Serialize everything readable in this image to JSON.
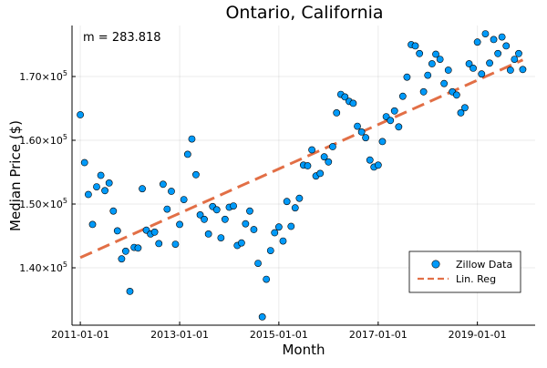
{
  "chart_data": {
    "type": "scatter",
    "title": "Ontario, California",
    "xlabel": "Month",
    "ylabel": "Median Price ($)",
    "annotation": "m = 283.818",
    "x_ticks": [
      "2011-01-01",
      "2013-01-01",
      "2015-01-01",
      "2017-01-01",
      "2019-01-01"
    ],
    "y_ticks": [
      140000,
      150000,
      160000,
      170000
    ],
    "y_tick_labels": [
      {
        "base": "1.40×10",
        "exp": "5"
      },
      {
        "base": "1.50×10",
        "exp": "5"
      },
      {
        "base": "1.60×10",
        "exp": "5"
      },
      {
        "base": "1.70×10",
        "exp": "5"
      }
    ],
    "xlim": [
      "2010-11-01",
      "2020-03-01"
    ],
    "ylim": [
      131000,
      178000
    ],
    "grid": true,
    "legend_position": "bottom-right",
    "series": [
      {
        "name": "Zillow Data",
        "kind": "scatter",
        "color": "#009AF9",
        "x": [
          "2011-01-01",
          "2011-02-01",
          "2011-03-01",
          "2011-04-01",
          "2011-05-01",
          "2011-06-01",
          "2011-07-01",
          "2011-08-01",
          "2011-09-01",
          "2011-10-01",
          "2011-11-01",
          "2011-12-01",
          "2012-01-01",
          "2012-02-01",
          "2012-03-01",
          "2012-04-01",
          "2012-05-01",
          "2012-06-01",
          "2012-07-01",
          "2012-08-01",
          "2012-09-01",
          "2012-10-01",
          "2012-11-01",
          "2012-12-01",
          "2013-01-01",
          "2013-02-01",
          "2013-03-01",
          "2013-04-01",
          "2013-05-01",
          "2013-06-01",
          "2013-07-01",
          "2013-08-01",
          "2013-09-01",
          "2013-10-01",
          "2013-11-01",
          "2013-12-01",
          "2014-01-01",
          "2014-02-01",
          "2014-03-01",
          "2014-04-01",
          "2014-05-01",
          "2014-06-01",
          "2014-07-01",
          "2014-08-01",
          "2014-09-01",
          "2014-10-01",
          "2014-11-01",
          "2014-12-01",
          "2015-01-01",
          "2015-02-01",
          "2015-03-01",
          "2015-04-01",
          "2015-05-01",
          "2015-06-01",
          "2015-07-01",
          "2015-08-01",
          "2015-09-01",
          "2015-10-01",
          "2015-11-01",
          "2015-12-01",
          "2016-01-01",
          "2016-02-01",
          "2016-03-01",
          "2016-04-01",
          "2016-05-01",
          "2016-06-01",
          "2016-07-01",
          "2016-08-01",
          "2016-09-01",
          "2016-10-01",
          "2016-11-01",
          "2016-12-01",
          "2017-01-01",
          "2017-02-01",
          "2017-03-01",
          "2017-04-01",
          "2017-05-01",
          "2017-06-01",
          "2017-07-01",
          "2017-08-01",
          "2017-09-01",
          "2017-10-01",
          "2017-11-01",
          "2017-12-01",
          "2018-01-01",
          "2018-02-01",
          "2018-03-01",
          "2018-04-01",
          "2018-05-01",
          "2018-06-01",
          "2018-07-01",
          "2018-08-01",
          "2018-09-01",
          "2018-10-01",
          "2018-11-01",
          "2018-12-01",
          "2019-01-01",
          "2019-02-01",
          "2019-03-01",
          "2019-04-01",
          "2019-05-01",
          "2019-06-01",
          "2019-07-01",
          "2019-08-01",
          "2019-09-01",
          "2019-10-01",
          "2019-11-01",
          "2019-12-01"
        ],
        "y": [
          164000,
          156500,
          151500,
          146800,
          152700,
          154500,
          152100,
          153300,
          148900,
          145800,
          141400,
          142600,
          136300,
          143200,
          143100,
          152400,
          145900,
          145300,
          145600,
          143800,
          153100,
          149200,
          152000,
          143700,
          146800,
          150700,
          157800,
          160200,
          154600,
          148300,
          147600,
          145300,
          149600,
          149100,
          144700,
          147600,
          149500,
          149700,
          143500,
          143900,
          146900,
          148900,
          146000,
          140700,
          132300,
          138200,
          142700,
          145500,
          146400,
          144200,
          150400,
          146500,
          149400,
          150900,
          156100,
          156000,
          158500,
          154400,
          154800,
          157400,
          156600,
          159000,
          164300,
          167200,
          166800,
          166100,
          165800,
          162200,
          161300,
          160400,
          156900,
          155800,
          156100,
          159800,
          163700,
          163100,
          164600,
          162100,
          166900,
          169900,
          175000,
          174800,
          173600,
          167600,
          170200,
          172000,
          173500,
          172700,
          168900,
          171000,
          167600,
          167100,
          164300,
          165100,
          172000,
          171300,
          175400,
          170400,
          176700,
          172100,
          175800,
          173600,
          176200,
          174800,
          171000,
          172700,
          173600,
          171100
        ]
      },
      {
        "name": "Lin. Reg",
        "kind": "line",
        "dash": true,
        "color": "#E26F46",
        "x": [
          "2011-01-01",
          "2019-12-01"
        ],
        "y": [
          141600,
          172600
        ]
      }
    ]
  }
}
